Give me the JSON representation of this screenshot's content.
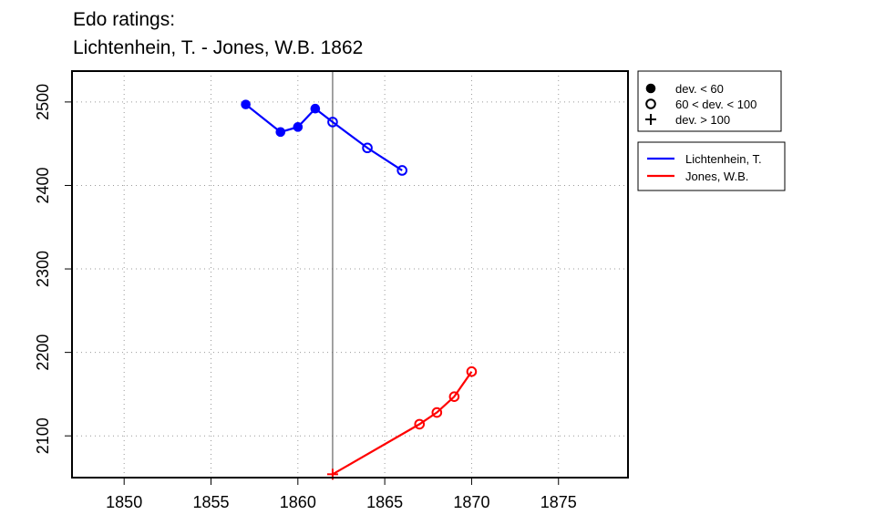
{
  "title": {
    "line1": "Edo ratings:",
    "line2": "Lichtenhein, T. - Jones, W.B. 1862"
  },
  "chart_data": {
    "type": "line",
    "xlim": [
      1847,
      1879
    ],
    "ylim": [
      2050,
      2537
    ],
    "x_ticks": [
      1850,
      1855,
      1860,
      1865,
      1870,
      1875
    ],
    "y_ticks": [
      2100,
      2200,
      2300,
      2400,
      2500
    ],
    "grid": "dotted",
    "event_year": 1862,
    "symbol_legend": [
      {
        "symbol": "filled-circle",
        "label": "dev. < 60"
      },
      {
        "symbol": "open-circle",
        "label": "60 < dev. < 100"
      },
      {
        "symbol": "plus",
        "label": "dev. > 100"
      }
    ],
    "series": [
      {
        "name": "Lichtenhein, T.",
        "color": "#0000ff",
        "points": [
          {
            "x": 1857,
            "y": 2497,
            "symbol": "filled-circle"
          },
          {
            "x": 1859,
            "y": 2464,
            "symbol": "filled-circle"
          },
          {
            "x": 1860,
            "y": 2470,
            "symbol": "filled-circle"
          },
          {
            "x": 1861,
            "y": 2492,
            "symbol": "filled-circle"
          },
          {
            "x": 1862,
            "y": 2476,
            "symbol": "open-circle"
          },
          {
            "x": 1864,
            "y": 2445,
            "symbol": "open-circle"
          },
          {
            "x": 1866,
            "y": 2418,
            "symbol": "open-circle"
          }
        ]
      },
      {
        "name": "Jones, W.B.",
        "color": "#ff0000",
        "points": [
          {
            "x": 1862,
            "y": 2054,
            "symbol": "plus"
          },
          {
            "x": 1867,
            "y": 2114,
            "symbol": "open-circle"
          },
          {
            "x": 1868,
            "y": 2128,
            "symbol": "open-circle"
          },
          {
            "x": 1869,
            "y": 2147,
            "symbol": "open-circle"
          },
          {
            "x": 1870,
            "y": 2177,
            "symbol": "open-circle"
          }
        ]
      }
    ]
  }
}
